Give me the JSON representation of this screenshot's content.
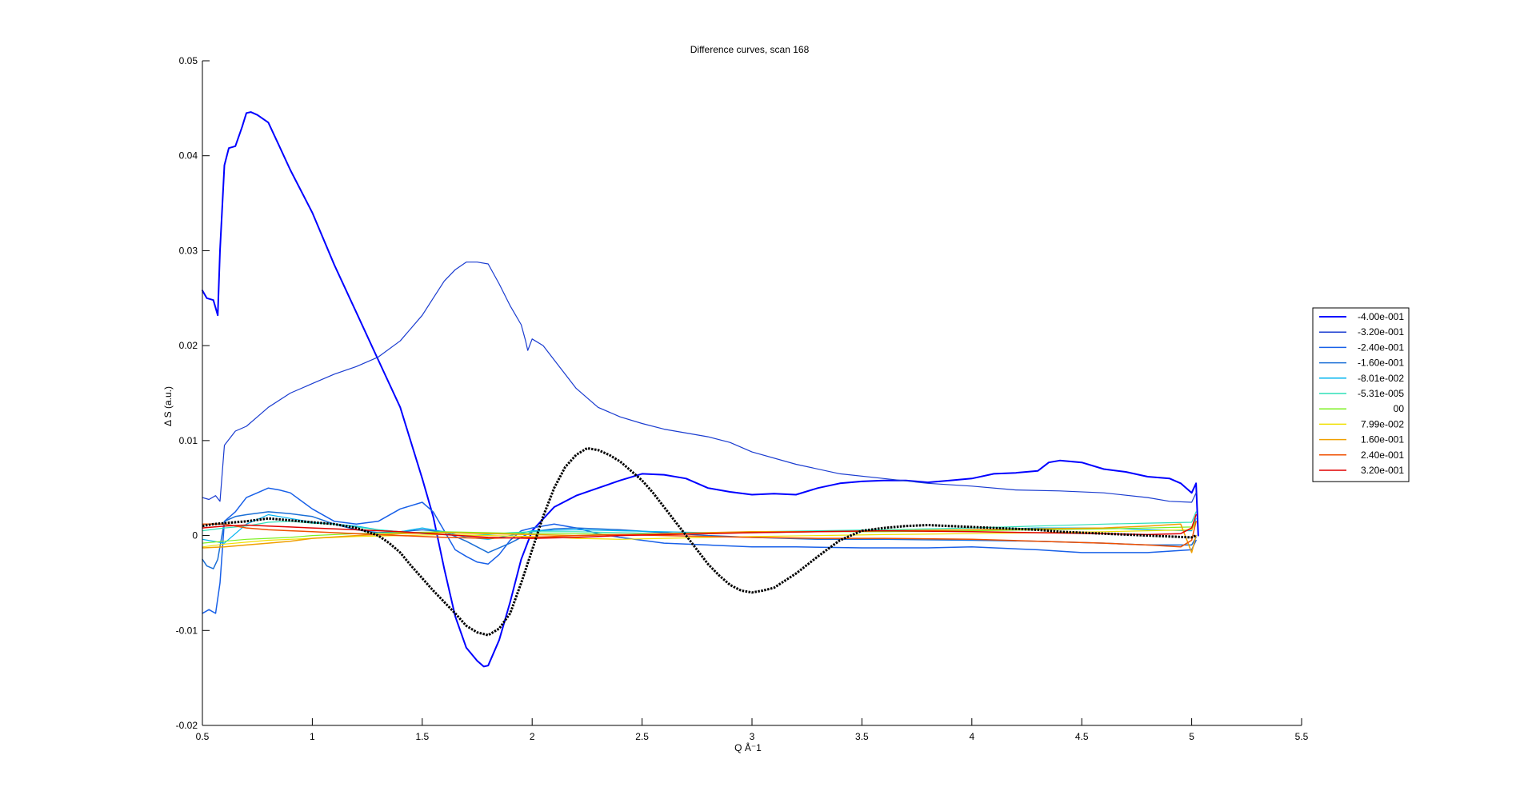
{
  "chart_data": {
    "type": "line",
    "title": "Difference curves, scan 168",
    "xlabel": "Q Å⁻1",
    "ylabel": "Δ S (a.u.)",
    "xlim": [
      0.5,
      5.5
    ],
    "ylim": [
      -0.02,
      0.05
    ],
    "grid": false,
    "legend_placement": "right",
    "x_ticks": [
      "0.5",
      "1",
      "1.5",
      "2",
      "2.5",
      "3",
      "3.5",
      "4",
      "4.5",
      "5",
      "5.5"
    ],
    "y_ticks": [
      "-0.02",
      "-0.01",
      "0",
      "0.01",
      "0.02",
      "0.03",
      "0.04",
      "0.05"
    ],
    "series": [
      {
        "name": "-4.00e-001",
        "color": "#0000ff",
        "width": 2,
        "x": [
          0.5,
          0.52,
          0.55,
          0.57,
          0.58,
          0.6,
          0.62,
          0.65,
          0.68,
          0.7,
          0.72,
          0.75,
          0.8,
          0.85,
          0.9,
          1.0,
          1.1,
          1.2,
          1.3,
          1.4,
          1.5,
          1.55,
          1.6,
          1.65,
          1.7,
          1.75,
          1.78,
          1.8,
          1.85,
          1.9,
          1.95,
          2.0,
          2.1,
          2.2,
          2.3,
          2.4,
          2.5,
          2.6,
          2.7,
          2.8,
          2.9,
          3.0,
          3.1,
          3.2,
          3.3,
          3.4,
          3.5,
          3.6,
          3.7,
          3.8,
          3.9,
          4.0,
          4.1,
          4.2,
          4.3,
          4.35,
          4.4,
          4.5,
          4.6,
          4.7,
          4.8,
          4.9,
          4.95,
          5.0,
          5.02,
          5.03
        ],
        "y": [
          0.0258,
          0.025,
          0.0248,
          0.0232,
          0.03,
          0.039,
          0.0408,
          0.041,
          0.043,
          0.0445,
          0.0446,
          0.0443,
          0.0435,
          0.041,
          0.0385,
          0.034,
          0.0285,
          0.0235,
          0.0185,
          0.0135,
          0.006,
          0.002,
          -0.0035,
          -0.0085,
          -0.0118,
          -0.0132,
          -0.0138,
          -0.0137,
          -0.011,
          -0.007,
          -0.0025,
          0.0005,
          0.003,
          0.0042,
          0.005,
          0.0058,
          0.0065,
          0.0064,
          0.006,
          0.005,
          0.0046,
          0.0043,
          0.0044,
          0.0043,
          0.005,
          0.0055,
          0.0057,
          0.0058,
          0.0058,
          0.0056,
          0.0058,
          0.006,
          0.0065,
          0.0066,
          0.0068,
          0.0077,
          0.0079,
          0.0077,
          0.007,
          0.0067,
          0.0062,
          0.006,
          0.0055,
          0.0045,
          0.0055,
          0.0
        ]
      },
      {
        "name": "-3.20e-001",
        "color": "#1a3cd0",
        "width": 1.2,
        "x": [
          0.5,
          0.53,
          0.56,
          0.58,
          0.6,
          0.65,
          0.7,
          0.75,
          0.8,
          0.9,
          1.0,
          1.1,
          1.2,
          1.3,
          1.4,
          1.5,
          1.55,
          1.6,
          1.65,
          1.7,
          1.75,
          1.8,
          1.85,
          1.9,
          1.95,
          1.97,
          1.98,
          2.0,
          2.05,
          2.1,
          2.2,
          2.3,
          2.4,
          2.5,
          2.6,
          2.7,
          2.8,
          2.9,
          3.0,
          3.2,
          3.4,
          3.6,
          3.8,
          4.0,
          4.2,
          4.4,
          4.6,
          4.8,
          4.9,
          5.0,
          5.02
        ],
        "y": [
          0.004,
          0.0038,
          0.0042,
          0.0036,
          0.0095,
          0.011,
          0.0115,
          0.0125,
          0.0135,
          0.015,
          0.016,
          0.017,
          0.0178,
          0.0188,
          0.0205,
          0.0232,
          0.025,
          0.0268,
          0.028,
          0.0288,
          0.0288,
          0.0286,
          0.0265,
          0.0242,
          0.0222,
          0.0205,
          0.0195,
          0.0207,
          0.02,
          0.0185,
          0.0155,
          0.0135,
          0.0125,
          0.0118,
          0.0112,
          0.0108,
          0.0104,
          0.0098,
          0.0088,
          0.0075,
          0.0065,
          0.006,
          0.0055,
          0.0052,
          0.0048,
          0.0047,
          0.0045,
          0.004,
          0.0036,
          0.0035,
          0.0045
        ]
      },
      {
        "name": "-2.40e-001",
        "color": "#1860e8",
        "width": 1.5,
        "x": [
          0.5,
          0.53,
          0.56,
          0.58,
          0.6,
          0.65,
          0.7,
          0.75,
          0.8,
          0.85,
          0.9,
          1.0,
          1.1,
          1.2,
          1.3,
          1.4,
          1.5,
          1.55,
          1.6,
          1.65,
          1.7,
          1.75,
          1.8,
          1.85,
          1.9,
          1.95,
          2.0,
          2.1,
          2.2,
          2.3,
          2.4,
          2.5,
          2.6,
          2.8,
          3.0,
          3.2,
          3.5,
          3.8,
          4.0,
          4.3,
          4.5,
          4.8,
          5.0,
          5.02
        ],
        "y": [
          -0.0082,
          -0.0078,
          -0.0082,
          -0.005,
          0.0015,
          0.0025,
          0.004,
          0.0045,
          0.005,
          0.0048,
          0.0045,
          0.0028,
          0.0015,
          0.0012,
          0.0015,
          0.0028,
          0.0035,
          0.0025,
          0.0005,
          -0.0015,
          -0.0022,
          -0.0028,
          -0.003,
          -0.002,
          -0.0005,
          0.0005,
          0.0008,
          0.0012,
          0.0008,
          0.0002,
          -0.0002,
          -0.0005,
          -0.0008,
          -0.001,
          -0.0012,
          -0.0012,
          -0.0013,
          -0.0013,
          -0.0012,
          -0.0015,
          -0.0018,
          -0.0018,
          -0.0015,
          -0.0005
        ]
      },
      {
        "name": "-1.60e-001",
        "color": "#1a6fd6",
        "width": 1.5,
        "x": [
          0.5,
          0.52,
          0.55,
          0.57,
          0.6,
          0.65,
          0.7,
          0.8,
          0.9,
          1.0,
          1.1,
          1.2,
          1.3,
          1.4,
          1.5,
          1.6,
          1.7,
          1.8,
          1.9,
          2.0,
          2.1,
          2.2,
          2.4,
          2.6,
          2.8,
          3.0,
          3.3,
          3.6,
          4.0,
          4.3,
          4.6,
          4.8,
          5.0,
          5.02
        ],
        "y": [
          -0.0025,
          -0.0032,
          -0.0035,
          -0.0025,
          0.0015,
          0.002,
          0.0022,
          0.0025,
          0.0023,
          0.002,
          0.0012,
          0.0006,
          0.0003,
          0.0004,
          0.0006,
          0.0004,
          -0.0006,
          -0.0018,
          -0.0008,
          0.0004,
          0.0007,
          0.0008,
          0.0006,
          0.0003,
          0.0,
          -0.0002,
          -0.0004,
          -0.0004,
          -0.0005,
          -0.0006,
          -0.0008,
          -0.001,
          -0.001,
          -0.0002
        ]
      },
      {
        "name": "-8.01e-002",
        "color": "#00b4f0",
        "width": 1.2,
        "x": [
          0.5,
          0.6,
          0.7,
          0.8,
          0.9,
          1.0,
          1.1,
          1.2,
          1.3,
          1.4,
          1.5,
          1.6,
          1.7,
          1.8,
          1.9,
          2.0,
          2.2,
          2.4,
          2.6,
          2.8,
          3.0,
          3.3,
          3.6,
          4.0,
          4.3,
          4.6,
          4.8,
          5.0,
          5.02
        ],
        "y": [
          -0.0004,
          -0.0008,
          0.0012,
          0.0022,
          0.0018,
          0.0014,
          0.0012,
          0.001,
          0.0006,
          0.0004,
          0.0008,
          0.0004,
          -0.0002,
          -0.0004,
          0.0,
          0.0005,
          0.0006,
          0.0005,
          0.0004,
          0.0003,
          0.0003,
          0.0004,
          0.0005,
          0.0006,
          0.0008,
          0.0008,
          0.0006,
          0.0005,
          0.0018
        ]
      },
      {
        "name": "-5.31e-005",
        "color": "#2ee0b8",
        "width": 1.2,
        "x": [
          0.5,
          0.6,
          0.7,
          0.8,
          0.9,
          1.0,
          1.1,
          1.2,
          1.3,
          1.4,
          1.5,
          1.6,
          1.7,
          1.8,
          1.9,
          2.0,
          2.2,
          2.4,
          2.6,
          2.8,
          3.0,
          3.3,
          3.6,
          4.0,
          4.3,
          4.6,
          4.8,
          5.0,
          5.02
        ],
        "y": [
          0.0005,
          0.0008,
          0.001,
          0.0014,
          0.0015,
          0.0013,
          0.0012,
          0.0009,
          0.0006,
          0.0004,
          0.0002,
          0.0001,
          0.0,
          0.0001,
          0.0003,
          0.0004,
          0.0004,
          0.0003,
          0.0002,
          0.0003,
          0.0004,
          0.0005,
          0.0006,
          0.0008,
          0.001,
          0.0012,
          0.0013,
          0.0014,
          0.0025
        ]
      },
      {
        "name": "00",
        "color": "#7cf020",
        "width": 1.2,
        "x": [
          0.5,
          0.6,
          0.7,
          0.8,
          0.9,
          1.0,
          1.2,
          1.4,
          1.6,
          1.8,
          2.0,
          2.2,
          2.4,
          2.6,
          2.8,
          3.0,
          3.3,
          3.6,
          4.0,
          4.3,
          4.6,
          4.8,
          5.0,
          5.02
        ],
        "y": [
          -0.0008,
          -0.0006,
          -0.0004,
          -0.0003,
          -0.0002,
          0.0,
          0.0002,
          0.0003,
          0.0004,
          0.0003,
          0.0002,
          0.0002,
          0.0001,
          0.0002,
          0.0002,
          0.0003,
          0.0004,
          0.0004,
          0.0005,
          0.0006,
          0.0007,
          0.0008,
          0.0009,
          0.0015
        ]
      },
      {
        "name": "7.99e-002",
        "color": "#f0e000",
        "width": 1.2,
        "x": [
          0.5,
          0.6,
          0.7,
          0.8,
          0.9,
          1.0,
          1.2,
          1.4,
          1.6,
          1.8,
          2.0,
          2.2,
          2.4,
          2.6,
          2.8,
          3.0,
          3.3,
          3.6,
          4.0,
          4.3,
          4.6,
          4.8,
          5.0,
          5.02
        ],
        "y": [
          -0.0012,
          -0.0009,
          -0.0007,
          -0.0005,
          -0.0004,
          -0.0003,
          -0.0001,
          0.0,
          0.0001,
          0.0,
          -0.0001,
          -0.0003,
          -0.0004,
          -0.0003,
          -0.0002,
          -0.0001,
          0.0,
          0.0001,
          0.0002,
          0.0003,
          0.0004,
          0.0005,
          0.0006,
          0.0014
        ]
      },
      {
        "name": "1.60e-001",
        "color": "#f0a000",
        "width": 1.5,
        "x": [
          0.5,
          0.6,
          0.7,
          0.8,
          0.9,
          1.0,
          1.2,
          1.4,
          1.6,
          1.8,
          2.0,
          2.2,
          2.4,
          2.6,
          2.8,
          3.0,
          3.3,
          3.6,
          4.0,
          4.3,
          4.6,
          4.8,
          4.95,
          5.0,
          5.02
        ],
        "y": [
          -0.0013,
          -0.0012,
          -0.001,
          -0.0008,
          -0.0006,
          -0.0003,
          0.0,
          0.0002,
          0.0003,
          0.0002,
          0.0001,
          0.0,
          0.0001,
          0.0002,
          0.0003,
          0.0004,
          0.0004,
          0.0005,
          0.0006,
          0.0007,
          0.0008,
          0.001,
          0.0012,
          -0.0018,
          0.0
        ]
      },
      {
        "name": "2.40e-001",
        "color": "#f05000",
        "width": 1.5,
        "x": [
          0.5,
          0.6,
          0.7,
          0.8,
          0.9,
          1.0,
          1.2,
          1.4,
          1.6,
          1.8,
          2.0,
          2.2,
          2.4,
          2.6,
          2.8,
          3.0,
          3.3,
          3.6,
          4.0,
          4.3,
          4.6,
          4.8,
          4.95,
          5.0,
          5.02
        ],
        "y": [
          0.0012,
          0.0012,
          0.0008,
          0.0006,
          0.0005,
          0.0004,
          0.0002,
          0.0,
          -0.0002,
          -0.0003,
          -0.0002,
          0.0,
          0.0001,
          0.0,
          -0.0001,
          -0.0002,
          -0.0003,
          -0.0003,
          -0.0004,
          -0.0006,
          -0.0008,
          -0.001,
          -0.0012,
          -0.0005,
          0.0015
        ]
      },
      {
        "name": "3.20e-001",
        "color": "#e00000",
        "width": 1.5,
        "x": [
          0.5,
          0.6,
          0.7,
          0.8,
          0.9,
          1.0,
          1.2,
          1.4,
          1.6,
          1.8,
          2.0,
          2.2,
          2.4,
          2.6,
          2.8,
          3.0,
          3.3,
          3.6,
          4.0,
          4.3,
          4.6,
          4.8,
          4.95,
          5.0,
          5.02
        ],
        "y": [
          0.0008,
          0.001,
          0.0011,
          0.001,
          0.0009,
          0.0008,
          0.0006,
          0.0004,
          0.0001,
          -0.0002,
          -0.0003,
          -0.0002,
          0.0,
          0.0001,
          0.0002,
          0.0003,
          0.0004,
          0.0005,
          0.0004,
          0.0003,
          0.0002,
          0.0001,
          0.0002,
          0.0008,
          0.0022
        ]
      },
      {
        "name": "",
        "color": "#000000",
        "width": 3,
        "dotted": true,
        "x": [
          0.5,
          0.55,
          0.6,
          0.7,
          0.8,
          0.9,
          1.0,
          1.1,
          1.2,
          1.3,
          1.35,
          1.4,
          1.45,
          1.5,
          1.55,
          1.6,
          1.65,
          1.7,
          1.75,
          1.8,
          1.85,
          1.9,
          1.95,
          2.0,
          2.05,
          2.1,
          2.15,
          2.2,
          2.25,
          2.3,
          2.35,
          2.4,
          2.45,
          2.5,
          2.55,
          2.6,
          2.65,
          2.7,
          2.75,
          2.8,
          2.85,
          2.9,
          2.95,
          3.0,
          3.05,
          3.1,
          3.2,
          3.3,
          3.4,
          3.5,
          3.6,
          3.7,
          3.8,
          3.9,
          4.0,
          4.1,
          4.2,
          4.3,
          4.4,
          4.5,
          4.6,
          4.7,
          4.8,
          4.9,
          5.0,
          5.02
        ],
        "y": [
          0.001,
          0.0012,
          0.0013,
          0.0015,
          0.0018,
          0.0016,
          0.0014,
          0.0012,
          0.0008,
          0.0,
          -0.0008,
          -0.0018,
          -0.0032,
          -0.0045,
          -0.0058,
          -0.007,
          -0.0082,
          -0.0095,
          -0.0102,
          -0.0105,
          -0.0098,
          -0.0082,
          -0.005,
          -0.0015,
          0.002,
          0.005,
          0.0072,
          0.0085,
          0.0092,
          0.009,
          0.0085,
          0.0078,
          0.0068,
          0.0058,
          0.0045,
          0.003,
          0.0015,
          0.0,
          -0.0015,
          -0.003,
          -0.0042,
          -0.0052,
          -0.0058,
          -0.006,
          -0.0058,
          -0.0055,
          -0.004,
          -0.0022,
          -0.0005,
          0.0005,
          0.0008,
          0.001,
          0.0011,
          0.001,
          0.0009,
          0.0008,
          0.0007,
          0.0006,
          0.0004,
          0.0003,
          0.0002,
          0.0001,
          0.0,
          -0.0001,
          -0.0002,
          0.0
        ]
      }
    ]
  }
}
